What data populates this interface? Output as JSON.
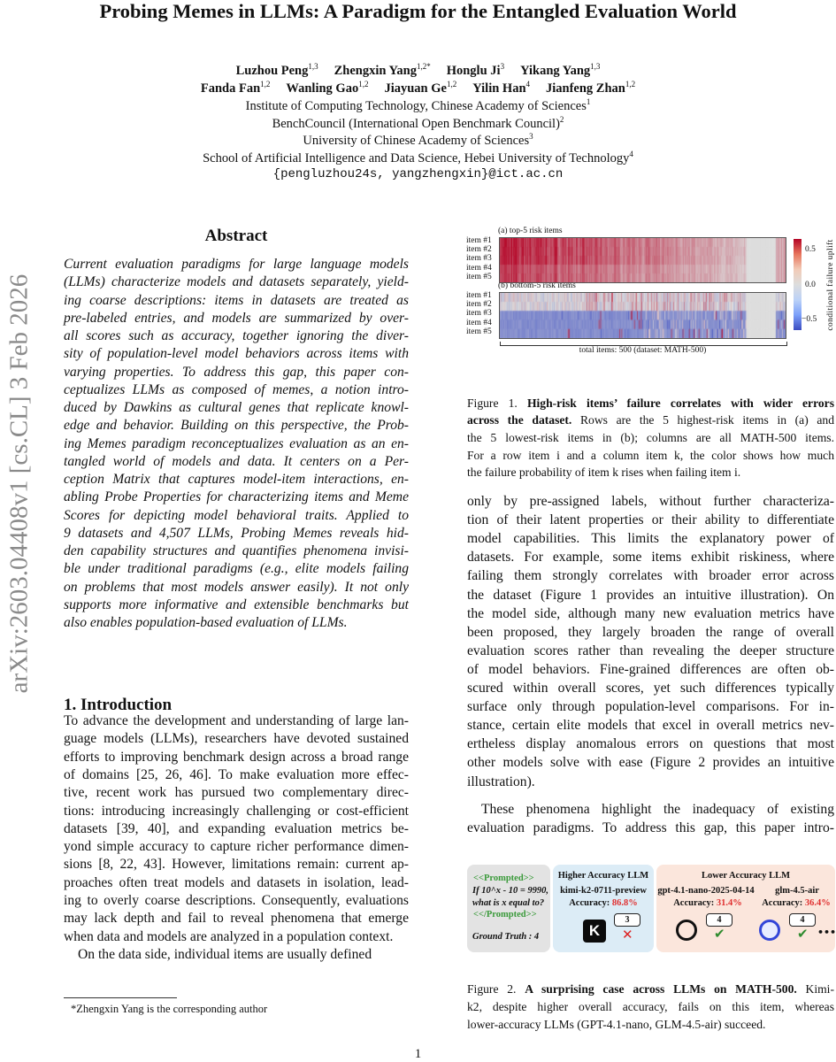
{
  "sidebar_stamp": "arXiv:2603.04408v1  [cs.CL]  3 Feb 2026",
  "title": "Probing Memes in LLMs: A Paradigm for the Entangled Evaluation World",
  "authors_row1": [
    {
      "name": "Luzhou Peng",
      "sup": "1,3"
    },
    {
      "name": "Zhengxin Yang",
      "sup": "1,2*"
    },
    {
      "name": "Honglu Ji",
      "sup": "3"
    },
    {
      "name": "Yikang Yang",
      "sup": "1,3"
    }
  ],
  "authors_row2": [
    {
      "name": "Fanda Fan",
      "sup": "1,2"
    },
    {
      "name": "Wanling Gao",
      "sup": "1,2"
    },
    {
      "name": "Jiayuan Ge",
      "sup": "1,2"
    },
    {
      "name": "Yilin Han",
      "sup": "4"
    },
    {
      "name": "Jianfeng Zhan",
      "sup": "1,2"
    }
  ],
  "affiliations": [
    {
      "text": "Institute of Computing Technology, Chinese Academy of Sciences",
      "sup": "1"
    },
    {
      "text": "BenchCouncil (International Open Benchmark Council)",
      "sup": "2"
    },
    {
      "text": "University of Chinese Academy of Sciences",
      "sup": "3"
    },
    {
      "text": "School of Artificial Intelligence and Data Science, Hebei University of Technology",
      "sup": "4"
    }
  ],
  "email": "{pengluzhou24s, yangzhengxin}@ict.ac.cn",
  "abstract": {
    "heading": "Abstract",
    "lines": [
      "Current evaluation paradigms for large language models",
      "(LLMs) characterize models and datasets separately, yield-",
      "ing coarse descriptions:  items in datasets are treated as",
      "pre-labeled entries, and models are summarized by over-",
      "all scores such as accuracy, together ignoring the diver-",
      "sity of population-level model behaviors across items with",
      "varying properties.  To address this gap, this paper con-",
      "ceptualizes LLMs as composed of memes, a notion intro-",
      "duced by Dawkins as cultural genes that replicate knowl-",
      "edge and behavior.  Building on this perspective, the Prob-",
      "ing Memes paradigm reconceptualizes evaluation as an en-",
      "tangled world of models and data.  It centers on a Per-",
      "ception Matrix that captures model-item interactions, en-",
      "abling Probe Properties for characterizing items and Meme",
      "Scores for depicting model behavioral traits.  Applied to",
      "9 datasets and 4,507 LLMs, Probing Memes reveals hid-",
      "den capability structures and quantifies phenomena invisi-",
      "ble under traditional paradigms (e.g., elite models failing",
      "on problems that most models answer easily).  It not only",
      "supports more informative and extensible benchmarks but",
      "also enables population-based evaluation of LLMs."
    ]
  },
  "intro": {
    "heading": "1. Introduction",
    "lines": [
      "To advance the development and understanding of large lan-",
      "guage models (LLMs), researchers have devoted sustained",
      "efforts to improving benchmark design across a broad range",
      "of domains [25, 26, 46].  To make evaluation more effec-",
      "tive, recent work has pursued two complementary direc-",
      "tions: introducing increasingly challenging or cost-efficient",
      "datasets [39, 40], and expanding evaluation metrics be-",
      "yond simple accuracy to capture richer performance dimen-",
      "sions [8, 22, 43]. However, limitations remain: current ap-",
      "proaches often treat models and datasets in isolation, lead-",
      "ing to overly coarse descriptions. Consequently, evaluations",
      "may lack depth and fail to reveal phenomena that emerge",
      "when data and models are analyzed in a population context.",
      "On the data side, individual items are usually defined"
    ],
    "right_lines": [
      "only by pre-assigned labels, without further characteriza-",
      "tion of their latent properties or their ability to differentiate",
      "model capabilities.  This limits the explanatory power of",
      "datasets. For example, some items exhibit riskiness, where",
      "failing them strongly correlates with broader error across",
      "the dataset (Figure 1 provides an intuitive illustration).  On",
      "the model side, although many new evaluation metrics have",
      "been proposed, they largely broaden the range of overall",
      "evaluation scores rather than revealing the deeper structure",
      "of model behaviors.  Fine-grained differences are often ob-",
      "scured within overall scores, yet such differences typically",
      "surface only through population-level comparisons. For in-",
      "stance, certain elite models that excel in overall metrics nev-",
      "ertheless display anomalous errors on questions that most",
      "other models solve with ease (Figure 2 provides an intuitive",
      "illustration).",
      "These phenomena highlight the inadequacy of existing",
      "evaluation paradigms. To address this gap, this paper intro-"
    ]
  },
  "footnote": "*Zhengxin Yang is the corresponding author",
  "figure1": {
    "panel_a": "(a) top-5 risk items",
    "panel_b": "(b) bottom-5 risk items",
    "row_labels": [
      "item #1",
      "item #2",
      "item #3",
      "item #4",
      "item #5"
    ],
    "colorbar_label": "conditional failure uplift",
    "colorbar_ticks": [
      "0.5",
      "0.0",
      "−0.5"
    ],
    "colorbar_range": [
      -0.65,
      0.65
    ],
    "colormap": "coolwarm",
    "xlabel": "total items: 500 (dataset: MATH-500)",
    "caption_label": "Figure 1.",
    "caption_bold_1": "High-risk items’ failure correlates with wider errors",
    "caption_bold_2": "across the dataset.",
    "caption_rest_2": " Rows are the 5 highest-risk items in (a) and",
    "caption_lines": [
      "the 5 lowest-risk items in (b); columns are all MATH-500 items.",
      "For a row item i and a column item k, the color shows how much",
      "the failure probability of item k rises when failing item i."
    ]
  },
  "figure2": {
    "prompt_open": "<<Prompted>>",
    "question_1": "If 10^x - 10 = 9990,",
    "question_2": "what is x equal to?",
    "prompt_close": "<</Prompted>>",
    "ground_truth": "Ground Truth :  4",
    "higher_title": "Higher Accuracy LLM",
    "lower_title": "Lower Accuracy LLM",
    "accuracy_label": "Accuracy:",
    "models": [
      {
        "name": "kimi-k2-0711-preview",
        "accuracy": "86.8%",
        "answer": "3",
        "correct": false
      },
      {
        "name": "gpt-4.1-nano-2025-04-14",
        "accuracy": "31.4%",
        "answer": "4",
        "correct": true
      },
      {
        "name": "glm-4.5-air",
        "accuracy": "36.4%",
        "answer": "4",
        "correct": true
      }
    ],
    "more": "•••",
    "colors": {
      "prompt_bg": "#e3e3e3",
      "higher_bg": "#dcecf6",
      "lower_bg": "#fbe6dc",
      "accuracy": "#e03030",
      "prompt_green": "#3a9a3a"
    },
    "caption_label": "Figure 2.",
    "caption_bold": "A surprising case across LLMs on MATH-500.",
    "caption_rest_1": " Kimi-",
    "caption_lines": [
      "k2, despite higher overall accuracy, fails on this item, whereas",
      "lower-accuracy LLMs (GPT-4.1-nano, GLM-4.5-air) succeed."
    ]
  },
  "page_number": "1"
}
